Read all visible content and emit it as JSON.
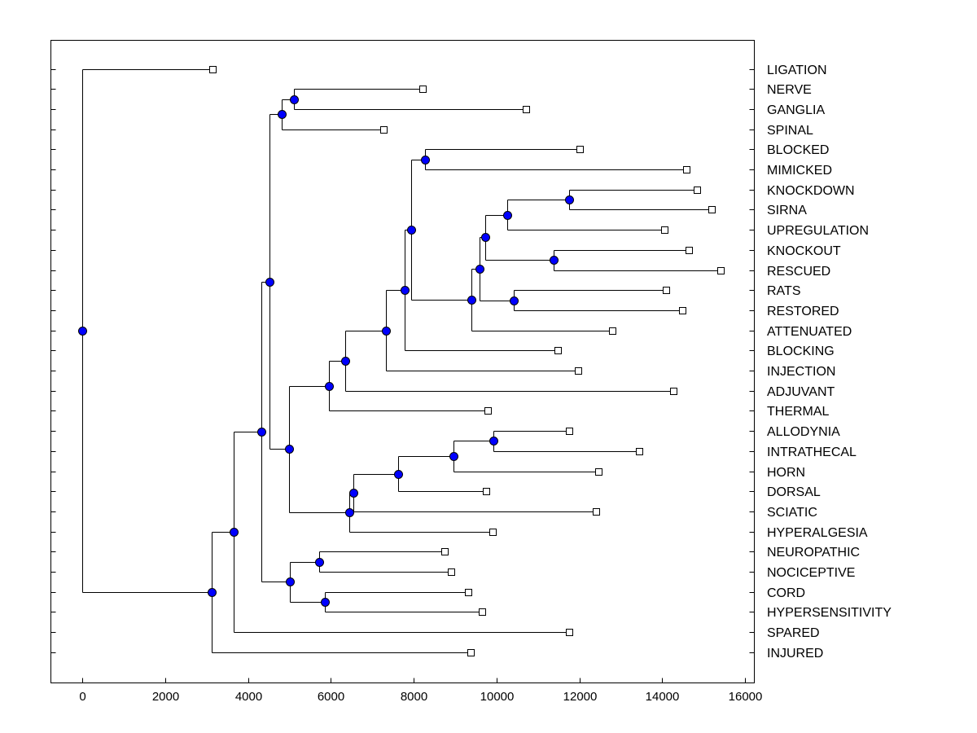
{
  "chart_data": {
    "type": "dendrogram",
    "orientation": "horizontal",
    "title": "",
    "xlabel": "",
    "ylabel": "",
    "xlim": [
      -750,
      16250
    ],
    "x_ticks": [
      0,
      2000,
      4000,
      6000,
      8000,
      10000,
      12000,
      14000,
      16000
    ],
    "x_tick_labels": [
      "0",
      "2000",
      "4000",
      "6000",
      "8000",
      "10000",
      "12000",
      "14000",
      "16000"
    ],
    "leaf_color": "#ffffff",
    "node_color": "#0000ff",
    "leaves": [
      {
        "label": "LIGATION",
        "x": 3150
      },
      {
        "label": "NERVE",
        "x": 8220
      },
      {
        "label": "GANGLIA",
        "x": 10720
      },
      {
        "label": "SPINAL",
        "x": 7280
      },
      {
        "label": "BLOCKED",
        "x": 12000
      },
      {
        "label": "MIMICKED",
        "x": 14580
      },
      {
        "label": "KNOCKDOWN",
        "x": 14840
      },
      {
        "label": "SIRNA",
        "x": 15200
      },
      {
        "label": "UPREGULATION",
        "x": 14050
      },
      {
        "label": "KNOCKOUT",
        "x": 14650
      },
      {
        "label": "RESCUED",
        "x": 15420
      },
      {
        "label": "RATS",
        "x": 14100
      },
      {
        "label": "RESTORED",
        "x": 14480
      },
      {
        "label": "ATTENUATED",
        "x": 12800
      },
      {
        "label": "BLOCKING",
        "x": 11480
      },
      {
        "label": "INJECTION",
        "x": 11980
      },
      {
        "label": "ADJUVANT",
        "x": 14280
      },
      {
        "label": "THERMAL",
        "x": 9780
      },
      {
        "label": "ALLODYNIA",
        "x": 11760
      },
      {
        "label": "INTRATHECAL",
        "x": 13440
      },
      {
        "label": "HORN",
        "x": 12460
      },
      {
        "label": "DORSAL",
        "x": 9750
      },
      {
        "label": "SCIATIC",
        "x": 12400
      },
      {
        "label": "HYPERALGESIA",
        "x": 9900
      },
      {
        "label": "NEUROPATHIC",
        "x": 8740
      },
      {
        "label": "NOCICEPTIVE",
        "x": 8900
      },
      {
        "label": "CORD",
        "x": 9320
      },
      {
        "label": "HYPERSENSITIVITY",
        "x": 9650
      },
      {
        "label": "SPARED",
        "x": 11750
      },
      {
        "label": "INJURED",
        "x": 9370
      }
    ],
    "merges": [
      {
        "id": "n1",
        "x": 5120,
        "children": [
          1,
          2
        ]
      },
      {
        "id": "n2",
        "x": 4820,
        "children": [
          "n1",
          3
        ]
      },
      {
        "id": "n3",
        "x": 11760,
        "children": [
          6,
          7
        ]
      },
      {
        "id": "n4",
        "x": 10260,
        "children": [
          "n3",
          8
        ]
      },
      {
        "id": "n5",
        "x": 11380,
        "children": [
          9,
          10
        ]
      },
      {
        "id": "n6",
        "x": 9720,
        "children": [
          "n4",
          "n5"
        ]
      },
      {
        "id": "n7",
        "x": 10420,
        "children": [
          11,
          12
        ]
      },
      {
        "id": "n8",
        "x": 9600,
        "children": [
          "n6",
          "n7"
        ]
      },
      {
        "id": "n9",
        "x": 9400,
        "children": [
          "n8",
          13
        ]
      },
      {
        "id": "n10",
        "x": 8280,
        "children": [
          4,
          5
        ]
      },
      {
        "id": "n11",
        "x": 7950,
        "children": [
          "n10",
          "n9"
        ]
      },
      {
        "id": "n12",
        "x": 7780,
        "children": [
          "n11",
          14
        ]
      },
      {
        "id": "n13",
        "x": 7340,
        "children": [
          "n12",
          15
        ]
      },
      {
        "id": "n14",
        "x": 6350,
        "children": [
          "n13",
          16
        ]
      },
      {
        "id": "n15",
        "x": 5950,
        "children": [
          "n14",
          17
        ]
      },
      {
        "id": "n16",
        "x": 9920,
        "children": [
          18,
          19
        ]
      },
      {
        "id": "n17",
        "x": 8960,
        "children": [
          "n16",
          20
        ]
      },
      {
        "id": "n18",
        "x": 7620,
        "children": [
          "n17",
          21
        ]
      },
      {
        "id": "n19",
        "x": 6550,
        "children": [
          "n18",
          22
        ]
      },
      {
        "id": "n20",
        "x": 6440,
        "children": [
          "n19",
          23
        ]
      },
      {
        "id": "n21",
        "x": 4990,
        "children": [
          "n15",
          "n20"
        ]
      },
      {
        "id": "n22",
        "x": 4520,
        "children": [
          "n2",
          "n21"
        ]
      },
      {
        "id": "n23",
        "x": 5720,
        "children": [
          24,
          25
        ]
      },
      {
        "id": "n24",
        "x": 5860,
        "children": [
          26,
          27
        ]
      },
      {
        "id": "n25",
        "x": 5010,
        "children": [
          "n23",
          "n24"
        ]
      },
      {
        "id": "n26",
        "x": 4320,
        "children": [
          "n22",
          "n25"
        ]
      },
      {
        "id": "n27",
        "x": 3650,
        "children": [
          "n26",
          28
        ]
      },
      {
        "id": "n28",
        "x": 3130,
        "children": [
          "n27",
          29
        ]
      },
      {
        "id": "n29",
        "x": 0,
        "children": [
          0,
          "n28"
        ]
      }
    ]
  }
}
